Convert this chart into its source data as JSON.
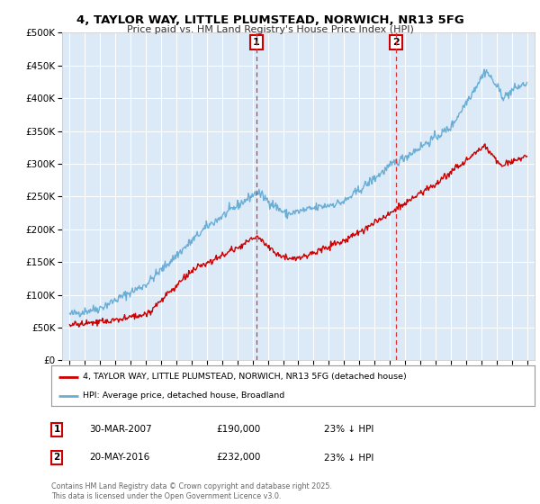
{
  "title_line1": "4, TAYLOR WAY, LITTLE PLUMSTEAD, NORWICH, NR13 5FG",
  "title_line2": "Price paid vs. HM Land Registry's House Price Index (HPI)",
  "background_color": "#ffffff",
  "plot_bg_color": "#dce9f7",
  "grid_color": "#ffffff",
  "line_red_color": "#cc0000",
  "line_blue_color": "#6aaed6",
  "vline_color": "#dd3333",
  "legend_label_red": "4, TAYLOR WAY, LITTLE PLUMSTEAD, NORWICH, NR13 5FG (detached house)",
  "legend_label_blue": "HPI: Average price, detached house, Broadland",
  "footnote": "Contains HM Land Registry data © Crown copyright and database right 2025.\nThis data is licensed under the Open Government Licence v3.0.",
  "marker1_date": "30-MAR-2007",
  "marker1_price": "£190,000",
  "marker1_pct": "23% ↓ HPI",
  "marker2_date": "20-MAY-2016",
  "marker2_price": "£232,000",
  "marker2_pct": "23% ↓ HPI",
  "vline1_x": 2007.24,
  "vline2_x": 2016.38,
  "ylim_min": 0,
  "ylim_max": 500000,
  "xlim_min": 1994.5,
  "xlim_max": 2025.5,
  "marker1_box_color": "#cc0000",
  "marker2_box_color": "#cc0000"
}
